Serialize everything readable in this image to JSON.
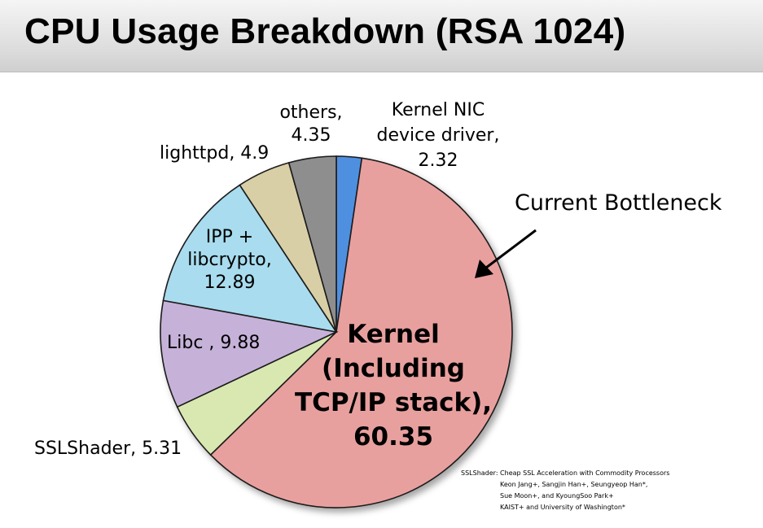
{
  "slide": {
    "title": "CPU Usage Breakdown (RSA 1024)",
    "citation": [
      "SSLShader: Cheap SSL Acceleration with Commodity Processors",
      "Keon Jang+, Sangjin Han+, Seungyeop Han*,",
      "Sue Moon+, and KyoungSoo Park+",
      "KAIST+ and University of Washington*"
    ]
  },
  "chart_data": {
    "type": "pie",
    "title": "",
    "categories": [
      "Kernel NIC device driver",
      "Kernel (Including TCP/IP stack)",
      "SSLShader",
      "Libc",
      "IPP + libcrypto",
      "lighttpd",
      "others"
    ],
    "values": [
      2.32,
      60.35,
      5.31,
      9.88,
      12.89,
      4.9,
      4.35
    ],
    "colors": [
      "#4f8fe0",
      "#e8a09e",
      "#d8e8b0",
      "#c6b2d8",
      "#a8dcee",
      "#d9cfa6",
      "#8e8e8e"
    ],
    "slice_labels": [
      [
        "Kernel NIC",
        "device driver,",
        "2.32"
      ],
      [
        "Kernel",
        "(Including",
        "TCP/IP stack),",
        "60.35"
      ],
      [
        "SSLShader, 5.31"
      ],
      [
        "Libc , 9.88"
      ],
      [
        "IPP +",
        "libcrypto,",
        "12.89"
      ],
      [
        "lighttpd, 4.9"
      ],
      [
        "others,",
        "4.35"
      ]
    ],
    "annotation": "Current Bottleneck",
    "legend": "none",
    "start": "top, clockwise"
  }
}
